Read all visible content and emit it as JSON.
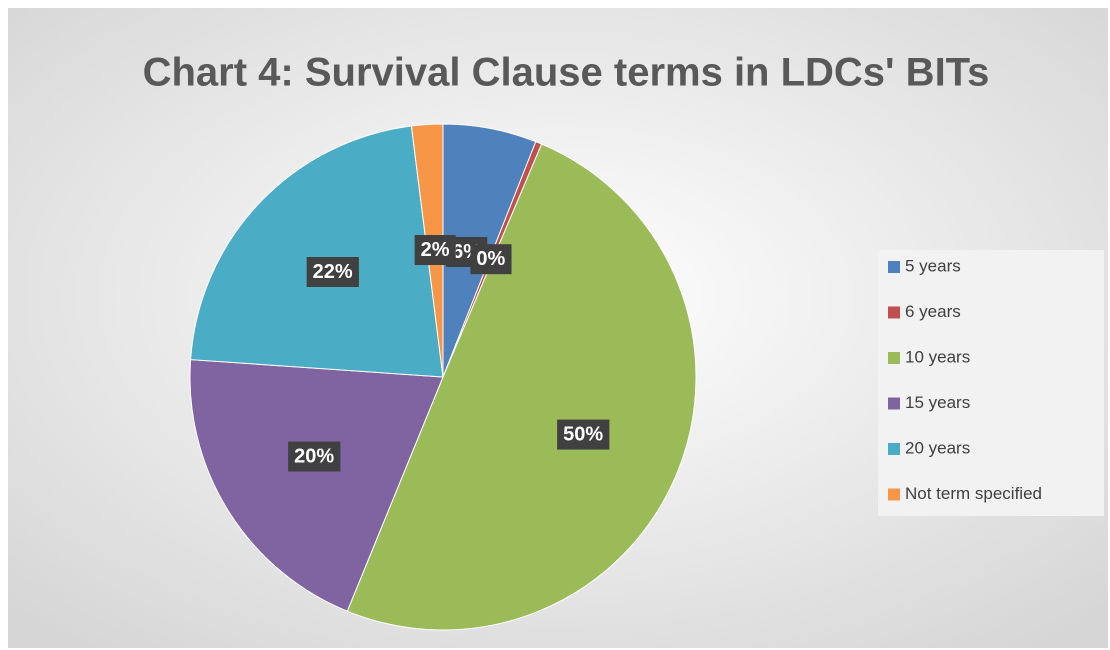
{
  "chart_data": {
    "type": "pie",
    "title": "Chart 4: Survival Clause terms in LDCs' BITs",
    "categories": [
      "5 years",
      "6 years",
      "10 years",
      "15 years",
      "20 years",
      "Not term specified"
    ],
    "values": [
      6,
      0.4,
      50,
      20,
      22,
      2
    ],
    "value_labels": [
      "6%",
      "0%",
      "50%",
      "20%",
      "22%",
      "2%"
    ],
    "colors": [
      "#4f81bd",
      "#c0504d",
      "#9bbb59",
      "#8064a2",
      "#4bacc6",
      "#f79646"
    ],
    "legend": "right"
  }
}
